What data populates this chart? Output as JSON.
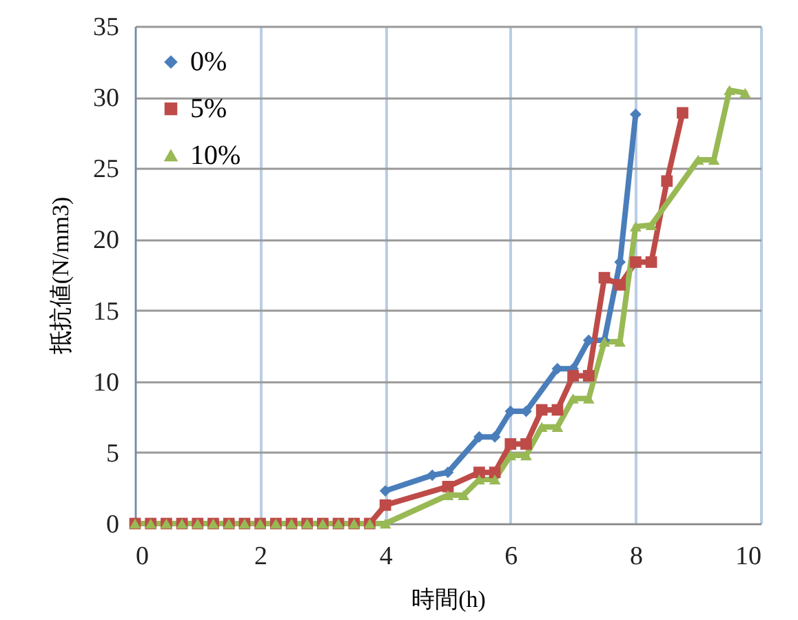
{
  "chart_data": {
    "type": "line",
    "xlabel": "時間(h)",
    "ylabel": "抵抗値(N/mm3)",
    "xlim": [
      0,
      10
    ],
    "xticks": [
      0,
      2,
      4,
      6,
      8,
      10
    ],
    "ylim": [
      0,
      35
    ],
    "yticks": [
      0,
      5,
      10,
      15,
      20,
      25,
      30,
      35
    ],
    "grid": true,
    "legend": "top left",
    "line_style": "solid",
    "series": [
      {
        "name": "0%",
        "color": "#4a7ebb",
        "marker": "diamond",
        "x": [
          4,
          4.75,
          5,
          5.5,
          5.75,
          6,
          6.25,
          6.75,
          7,
          7.25,
          7.5,
          7.75,
          8
        ],
        "values": [
          2.3,
          3.4,
          3.6,
          6.1,
          6.1,
          7.9,
          7.9,
          10.9,
          10.9,
          12.9,
          12.9,
          18.4,
          28.8
        ]
      },
      {
        "name": "5%",
        "color": "#be4b48",
        "marker": "square",
        "x": [
          0,
          0.25,
          0.5,
          0.75,
          1,
          1.25,
          1.5,
          1.75,
          2,
          2.25,
          2.5,
          2.75,
          3,
          3.25,
          3.5,
          3.75,
          4,
          5,
          5.5,
          5.75,
          6,
          6.25,
          6.5,
          6.75,
          7,
          7.25,
          7.5,
          7.75,
          8,
          8.25,
          8.5,
          8.75
        ],
        "values": [
          0,
          0,
          0,
          0,
          0,
          0,
          0,
          0,
          0,
          0,
          0,
          0,
          0,
          0,
          0,
          0,
          1.3,
          2.6,
          3.6,
          3.6,
          5.6,
          5.6,
          8,
          8,
          10.4,
          10.4,
          17.3,
          16.8,
          18.4,
          18.4,
          24.1,
          28.9
        ]
      },
      {
        "name": "10%",
        "color": "#98b954",
        "marker": "triangle",
        "x": [
          0,
          0.25,
          0.5,
          0.75,
          1,
          1.25,
          1.5,
          1.75,
          2,
          2.25,
          2.5,
          2.75,
          3,
          3.25,
          3.5,
          3.75,
          4,
          5,
          5.25,
          5.5,
          5.75,
          6,
          6.25,
          6.5,
          6.75,
          7,
          7.25,
          7.5,
          7.75,
          8,
          8.25,
          9,
          9.25,
          9.5,
          9.75
        ],
        "values": [
          0,
          0,
          0,
          0,
          0,
          0,
          0,
          0,
          0,
          0,
          0,
          0,
          0,
          0,
          0,
          0,
          0,
          2,
          2,
          3.1,
          3.1,
          4.8,
          4.8,
          6.8,
          6.8,
          8.8,
          8.8,
          12.8,
          12.8,
          20.9,
          21,
          25.6,
          25.6,
          30.5,
          30.3
        ]
      }
    ]
  }
}
